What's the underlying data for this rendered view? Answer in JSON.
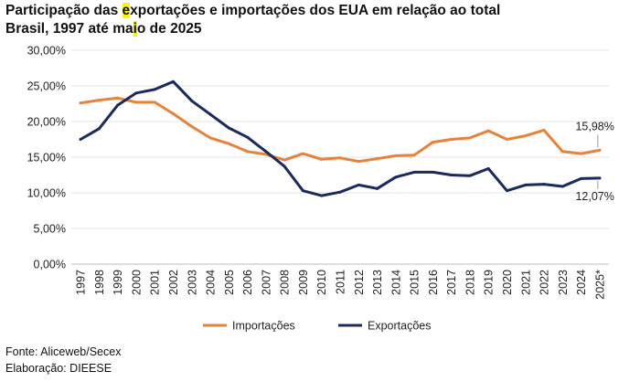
{
  "chart_data": {
    "type": "line",
    "title_line1_pre": "Participação das ",
    "title_line1_hl": "e",
    "title_line1_post": "xportações e importações dos EUA em relação ao total",
    "title_line2_pre": "Brasil, 1997 até ma",
    "title_line2_hl": "i",
    "title_line2_post": "o de 2025",
    "categories": [
      "1997",
      "1998",
      "1999",
      "2000",
      "2001",
      "2002",
      "2003",
      "2004",
      "2005",
      "2006",
      "2007",
      "2008",
      "2009",
      "2010",
      "2011",
      "2012",
      "2013",
      "2014",
      "2015",
      "2016",
      "2017",
      "2018",
      "2019",
      "2020",
      "2021",
      "2022",
      "2023",
      "2024",
      "2025*"
    ],
    "series": [
      {
        "name": "Importações",
        "color": "#e8823a",
        "values": [
          22.6,
          23.0,
          23.3,
          22.7,
          22.7,
          21.1,
          19.3,
          17.7,
          16.9,
          15.8,
          15.4,
          14.6,
          15.5,
          14.7,
          14.9,
          14.4,
          14.8,
          15.2,
          15.3,
          17.1,
          17.5,
          17.7,
          18.7,
          17.5,
          18.0,
          18.8,
          15.8,
          15.5,
          15.98
        ]
      },
      {
        "name": "Exportações",
        "color": "#1b2a5c",
        "values": [
          17.5,
          19.0,
          22.3,
          24.0,
          24.5,
          25.6,
          22.9,
          21.0,
          19.1,
          17.8,
          15.8,
          13.7,
          10.3,
          9.6,
          10.1,
          11.1,
          10.6,
          12.2,
          12.9,
          12.9,
          12.5,
          12.4,
          13.4,
          10.3,
          11.1,
          11.2,
          10.9,
          12.0,
          12.07
        ]
      }
    ],
    "yticks": [
      "0,00%",
      "5,00%",
      "10,00%",
      "15,00%",
      "20,00%",
      "25,00%",
      "30,00%"
    ],
    "ylim": [
      0,
      30
    ],
    "annotations": [
      {
        "series": "Importações",
        "label": "15,98%"
      },
      {
        "series": "Exportações",
        "label": "12,07%"
      }
    ],
    "legend_position": "bottom",
    "xlabel": "",
    "ylabel": ""
  },
  "footer": {
    "source": "Fonte: Aliceweb/Secex",
    "made_by": "Elaboração: DIEESE"
  }
}
